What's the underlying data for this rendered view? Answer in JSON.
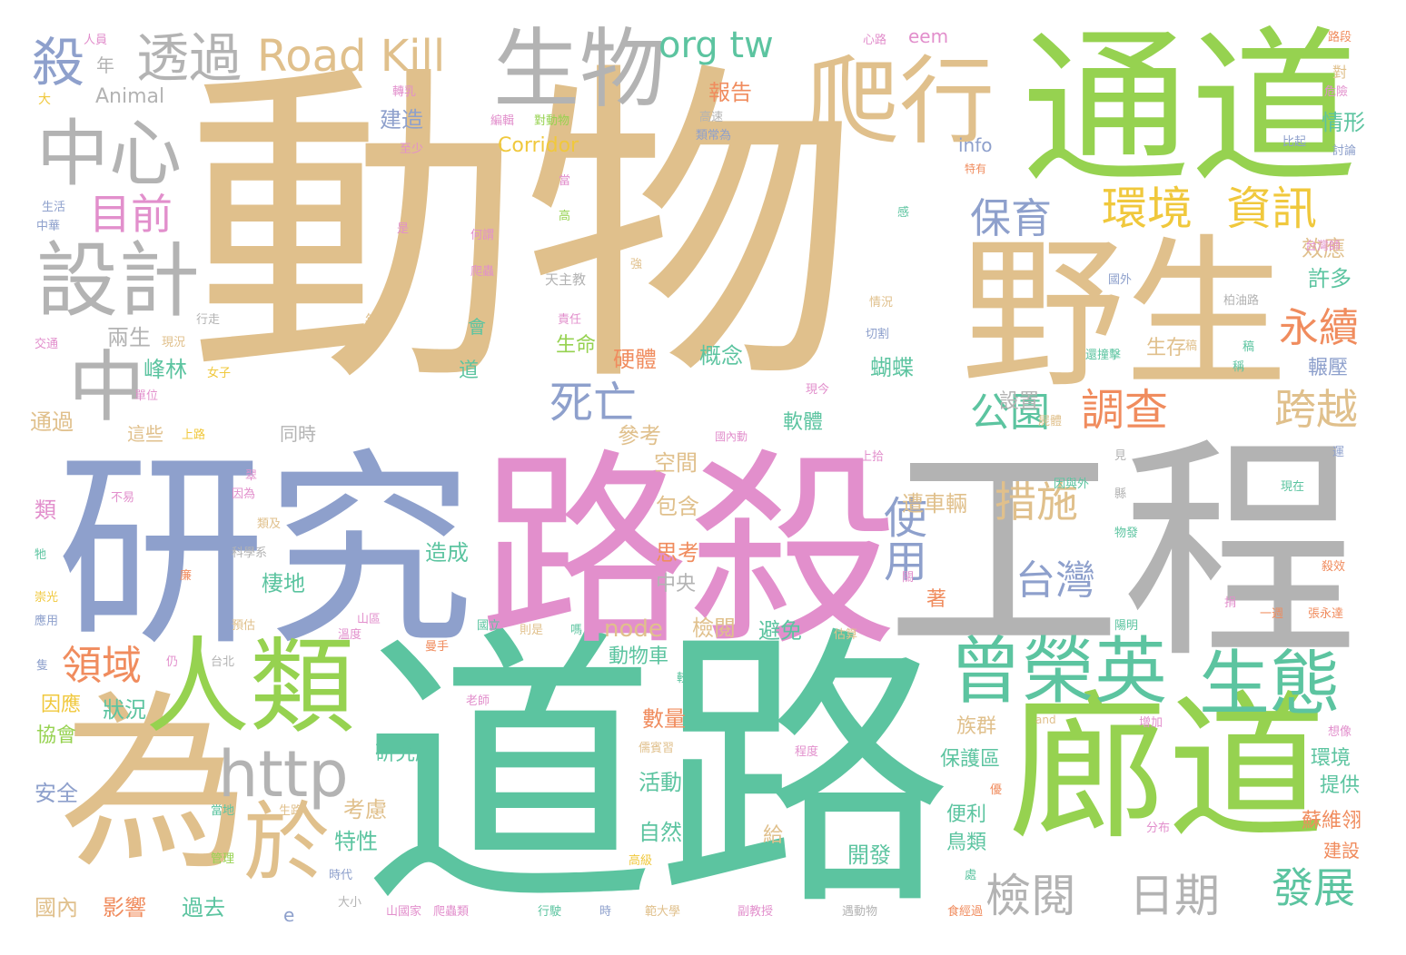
{
  "colors": {
    "tan": "#e0c08c",
    "teal": "#5cc4a0",
    "green": "#96d250",
    "blue": "#8ea0cc",
    "pink": "#e28fcc",
    "gray": "#b3b3b3",
    "orange": "#f08c5e",
    "yellow": "#f0c83c"
  },
  "words": [
    {
      "text": "動物",
      "color": "tan"
    },
    {
      "text": "道路",
      "color": "teal"
    },
    {
      "text": "工程",
      "color": "gray"
    },
    {
      "text": "研究",
      "color": "blue"
    },
    {
      "text": "路殺",
      "color": "pink"
    },
    {
      "text": "通道",
      "color": "green"
    },
    {
      "text": "野生",
      "color": "tan"
    },
    {
      "text": "廊道",
      "color": "green"
    },
    {
      "text": "為",
      "color": "tan"
    },
    {
      "text": "人類",
      "color": "green"
    },
    {
      "text": "生物",
      "color": "gray"
    },
    {
      "text": "爬行",
      "color": "tan"
    },
    {
      "text": "中心",
      "color": "gray"
    },
    {
      "text": "設計",
      "color": "gray"
    },
    {
      "text": "中",
      "color": "gray"
    },
    {
      "text": "http",
      "color": "gray"
    },
    {
      "text": "於",
      "color": "tan"
    },
    {
      "text": "曾榮英",
      "color": "teal"
    },
    {
      "text": "生態",
      "color": "teal"
    },
    {
      "text": "Road Kill",
      "color": "tan"
    },
    {
      "text": "透過",
      "color": "gray"
    },
    {
      "text": "殺",
      "color": "blue"
    },
    {
      "text": "org tw",
      "color": "teal"
    },
    {
      "text": "環境",
      "color": "yellow"
    },
    {
      "text": "資訊",
      "color": "yellow"
    },
    {
      "text": "保育",
      "color": "blue"
    },
    {
      "text": "永續",
      "color": "orange"
    },
    {
      "text": "目前",
      "color": "pink"
    },
    {
      "text": "死亡",
      "color": "blue"
    },
    {
      "text": "措施",
      "color": "tan"
    },
    {
      "text": "使用",
      "color": "blue"
    },
    {
      "text": "台灣",
      "color": "blue"
    },
    {
      "text": "公園",
      "color": "teal"
    },
    {
      "text": "調查",
      "color": "orange"
    },
    {
      "text": "跨越",
      "color": "tan"
    },
    {
      "text": "領域",
      "color": "orange"
    },
    {
      "text": "檢閱",
      "color": "gray"
    },
    {
      "text": "日期",
      "color": "gray"
    },
    {
      "text": "發展",
      "color": "teal"
    },
    {
      "text": "Corridor",
      "color": "yellow"
    },
    {
      "text": "Animal",
      "color": "gray"
    },
    {
      "text": "info",
      "color": "blue"
    },
    {
      "text": "node",
      "color": "tan"
    },
    {
      "text": "報告",
      "color": "orange"
    },
    {
      "text": "建造",
      "color": "blue"
    },
    {
      "text": "效應",
      "color": "tan"
    },
    {
      "text": "許多",
      "color": "teal"
    },
    {
      "text": "情形",
      "color": "teal"
    },
    {
      "text": "兩生",
      "color": "gray"
    },
    {
      "text": "通過",
      "color": "tan"
    },
    {
      "text": "峰林",
      "color": "teal"
    },
    {
      "text": "蝴蝶",
      "color": "teal"
    },
    {
      "text": "概念",
      "color": "teal"
    },
    {
      "text": "硬體",
      "color": "orange"
    },
    {
      "text": "生命",
      "color": "green"
    },
    {
      "text": "軟體",
      "color": "teal"
    },
    {
      "text": "參考",
      "color": "tan"
    },
    {
      "text": "空間",
      "color": "tan"
    },
    {
      "text": "包含",
      "color": "tan"
    },
    {
      "text": "思考",
      "color": "orange"
    },
    {
      "text": "中央",
      "color": "gray"
    },
    {
      "text": "造成",
      "color": "teal"
    },
    {
      "text": "棲地",
      "color": "teal"
    },
    {
      "text": "遭車輛",
      "color": "tan"
    },
    {
      "text": "設置",
      "color": "gray"
    },
    {
      "text": "檢閱",
      "color": "tan"
    },
    {
      "text": "避免",
      "color": "teal"
    },
    {
      "text": "動物車",
      "color": "teal"
    },
    {
      "text": "數量",
      "color": "orange"
    },
    {
      "text": "狀況",
      "color": "teal"
    },
    {
      "text": "因應",
      "color": "yellow"
    },
    {
      "text": "協會",
      "color": "green"
    },
    {
      "text": "安全",
      "color": "blue"
    },
    {
      "text": "研究所",
      "color": "teal"
    },
    {
      "text": "活動",
      "color": "teal"
    },
    {
      "text": "考慮",
      "color": "tan"
    },
    {
      "text": "特性",
      "color": "teal"
    },
    {
      "text": "自然",
      "color": "teal"
    },
    {
      "text": "族群",
      "color": "tan"
    },
    {
      "text": "保護區",
      "color": "teal"
    },
    {
      "text": "便利",
      "color": "teal"
    },
    {
      "text": "鳥類",
      "color": "teal"
    },
    {
      "text": "開發",
      "color": "teal"
    },
    {
      "text": "國內",
      "color": "tan"
    },
    {
      "text": "影響",
      "color": "orange"
    },
    {
      "text": "過去",
      "color": "teal"
    },
    {
      "text": "環境",
      "color": "teal"
    },
    {
      "text": "提供",
      "color": "teal"
    },
    {
      "text": "蘇維翎",
      "color": "orange"
    },
    {
      "text": "建設",
      "color": "orange"
    },
    {
      "text": "生存",
      "color": "tan"
    },
    {
      "text": "輾壓",
      "color": "blue"
    },
    {
      "text": "同時",
      "color": "gray"
    },
    {
      "text": "這些",
      "color": "tan"
    },
    {
      "text": "類",
      "color": "pink"
    },
    {
      "text": "著",
      "color": "orange"
    },
    {
      "text": "給",
      "color": "tan"
    },
    {
      "text": "會",
      "color": "teal"
    },
    {
      "text": "道",
      "color": "teal"
    },
    {
      "text": "年",
      "color": "gray"
    },
    {
      "text": "e",
      "color": "blue"
    },
    {
      "text": "eem",
      "color": "pink"
    },
    {
      "text": "人員",
      "color": "pink"
    },
    {
      "text": "大",
      "color": "yellow"
    },
    {
      "text": "心路",
      "color": "pink"
    },
    {
      "text": "路段",
      "color": "orange"
    },
    {
      "text": "危險",
      "color": "pink"
    },
    {
      "text": "對",
      "color": "tan"
    },
    {
      "text": "比起",
      "color": "blue"
    },
    {
      "text": "討論",
      "color": "blue"
    },
    {
      "text": "轉乳",
      "color": "pink"
    },
    {
      "text": "至少",
      "color": "pink"
    },
    {
      "text": "編輯",
      "color": "pink"
    },
    {
      "text": "對動物",
      "color": "green"
    },
    {
      "text": "高速",
      "color": "gray"
    },
    {
      "text": "類常為",
      "color": "blue"
    },
    {
      "text": "生活",
      "color": "blue"
    },
    {
      "text": "中華",
      "color": "blue"
    },
    {
      "text": "何謂",
      "color": "pink"
    },
    {
      "text": "爬蟲",
      "color": "pink"
    },
    {
      "text": "天主教",
      "color": "gray"
    },
    {
      "text": "當",
      "color": "pink"
    },
    {
      "text": "高",
      "color": "green"
    },
    {
      "text": "特有",
      "color": "orange"
    },
    {
      "text": "台灣師",
      "color": "pink"
    },
    {
      "text": "國外",
      "color": "blue"
    },
    {
      "text": "柏油路",
      "color": "gray"
    },
    {
      "text": "交通",
      "color": "pink"
    },
    {
      "text": "行走",
      "color": "gray"
    },
    {
      "text": "現況",
      "color": "tan"
    },
    {
      "text": "年間",
      "color": "tan"
    },
    {
      "text": "情況",
      "color": "tan"
    },
    {
      "text": "切割",
      "color": "blue"
    },
    {
      "text": "責任",
      "color": "pink"
    },
    {
      "text": "還撞擊",
      "color": "teal"
    },
    {
      "text": "單位",
      "color": "pink"
    },
    {
      "text": "女子",
      "color": "yellow"
    },
    {
      "text": "現今",
      "color": "pink"
    },
    {
      "text": "國內動",
      "color": "pink"
    },
    {
      "text": "上路",
      "color": "yellow"
    },
    {
      "text": "屍體",
      "color": "tan"
    },
    {
      "text": "上拾",
      "color": "pink"
    },
    {
      "text": "不易",
      "color": "pink"
    },
    {
      "text": "因為",
      "color": "pink"
    },
    {
      "text": "類及",
      "color": "tan"
    },
    {
      "text": "科學系",
      "color": "gray"
    },
    {
      "text": "因與外",
      "color": "teal"
    },
    {
      "text": "現在",
      "color": "teal"
    },
    {
      "text": "物發",
      "color": "teal"
    },
    {
      "text": "殺效",
      "color": "orange"
    },
    {
      "text": "崇光",
      "color": "yellow"
    },
    {
      "text": "應用",
      "color": "blue"
    },
    {
      "text": "預估",
      "color": "tan"
    },
    {
      "text": "山區",
      "color": "pink"
    },
    {
      "text": "溫度",
      "color": "pink"
    },
    {
      "text": "國立",
      "color": "teal"
    },
    {
      "text": "則是",
      "color": "tan"
    },
    {
      "text": "估算",
      "color": "tan"
    },
    {
      "text": "陽明",
      "color": "teal"
    },
    {
      "text": "一週",
      "color": "orange"
    },
    {
      "text": "張永達",
      "color": "orange"
    },
    {
      "text": "台北",
      "color": "gray"
    },
    {
      "text": "老師",
      "color": "pink"
    },
    {
      "text": "增加",
      "color": "pink"
    },
    {
      "text": "想像",
      "color": "pink"
    },
    {
      "text": "儒賓習",
      "color": "tan"
    },
    {
      "text": "程度",
      "color": "pink"
    },
    {
      "text": "當地",
      "color": "teal"
    },
    {
      "text": "生路",
      "color": "tan"
    },
    {
      "text": "管理",
      "color": "green"
    },
    {
      "text": "時代",
      "color": "blue"
    },
    {
      "text": "大小",
      "color": "gray"
    },
    {
      "text": "山國家",
      "color": "pink"
    },
    {
      "text": "爬蟲類",
      "color": "pink"
    },
    {
      "text": "行駛",
      "color": "teal"
    },
    {
      "text": "時",
      "color": "blue"
    },
    {
      "text": "範大學",
      "color": "tan"
    },
    {
      "text": "副教授",
      "color": "pink"
    },
    {
      "text": "遇動物",
      "color": "gray"
    },
    {
      "text": "食經過",
      "color": "orange"
    },
    {
      "text": "分布",
      "color": "pink"
    },
    {
      "text": "高級",
      "color": "yellow"
    },
    {
      "text": "and",
      "color": "tan"
    },
    {
      "text": "較",
      "color": "teal"
    },
    {
      "text": "仍",
      "color": "pink"
    },
    {
      "text": "曼手",
      "color": "orange"
    },
    {
      "text": "稿",
      "color": "teal"
    },
    {
      "text": "優",
      "color": "orange"
    },
    {
      "text": "處",
      "color": "teal"
    },
    {
      "text": "牠",
      "color": "teal"
    },
    {
      "text": "隻",
      "color": "blue"
    },
    {
      "text": "廉",
      "color": "orange"
    },
    {
      "text": "關",
      "color": "pink"
    },
    {
      "text": "捐",
      "color": "pink"
    },
    {
      "text": "見",
      "color": "gray"
    },
    {
      "text": "運",
      "color": "blue"
    },
    {
      "text": "縣",
      "color": "gray"
    },
    {
      "text": "強",
      "color": "tan"
    },
    {
      "text": "感",
      "color": "teal"
    },
    {
      "text": "是",
      "color": "pink"
    },
    {
      "text": "翠",
      "color": "pink"
    },
    {
      "text": "稱",
      "color": "teal"
    },
    {
      "text": "嗎",
      "color": "teal"
    },
    {
      "text": "稿",
      "color": "tan"
    }
  ]
}
